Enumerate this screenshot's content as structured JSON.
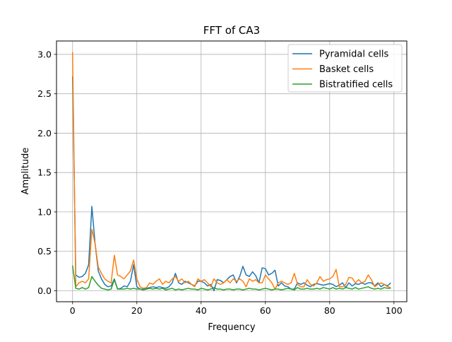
{
  "chart_data": {
    "type": "line",
    "title": "FFT of CA3",
    "xlabel": "Frequency",
    "ylabel": "Amplitude",
    "xlim": [
      -5,
      104
    ],
    "ylim": [
      -0.14,
      3.17
    ],
    "xticks": [
      0,
      20,
      40,
      60,
      80,
      100
    ],
    "yticks": [
      0.0,
      0.5,
      1.0,
      1.5,
      2.0,
      2.5,
      3.0
    ],
    "xtick_labels": [
      "0",
      "20",
      "40",
      "60",
      "80",
      "100"
    ],
    "ytick_labels": [
      "0.0",
      "0.5",
      "1.0",
      "1.5",
      "2.0",
      "2.5",
      "3.0"
    ],
    "grid": true,
    "legend_position": "top-right",
    "x": [
      0,
      1,
      2,
      3,
      4,
      5,
      6,
      7,
      8,
      9,
      10,
      11,
      12,
      13,
      14,
      15,
      16,
      17,
      18,
      19,
      20,
      21,
      22,
      23,
      24,
      25,
      26,
      27,
      28,
      29,
      30,
      31,
      32,
      33,
      34,
      35,
      36,
      37,
      38,
      39,
      40,
      41,
      42,
      43,
      44,
      45,
      46,
      47,
      48,
      49,
      50,
      51,
      52,
      53,
      54,
      55,
      56,
      57,
      58,
      59,
      60,
      61,
      62,
      63,
      64,
      65,
      66,
      67,
      68,
      69,
      70,
      71,
      72,
      73,
      74,
      75,
      76,
      77,
      78,
      79,
      80,
      81,
      82,
      83,
      84,
      85,
      86,
      87,
      88,
      89,
      90,
      91,
      92,
      93,
      94,
      95,
      96,
      97,
      98,
      99
    ],
    "series": [
      {
        "name": "Pyramidal cells",
        "color": "#1f77b4",
        "values": [
          2.72,
          0.2,
          0.17,
          0.18,
          0.22,
          0.33,
          1.07,
          0.6,
          0.25,
          0.15,
          0.08,
          0.05,
          0.06,
          0.15,
          0.02,
          0.03,
          0.06,
          0.05,
          0.12,
          0.33,
          0.05,
          0.02,
          0.02,
          0.03,
          0.04,
          0.05,
          0.04,
          0.05,
          0.04,
          0.03,
          0.05,
          0.1,
          0.22,
          0.1,
          0.08,
          0.12,
          0.1,
          0.08,
          0.06,
          0.12,
          0.12,
          0.1,
          0.06,
          0.08,
          0.0,
          0.14,
          0.13,
          0.1,
          0.14,
          0.18,
          0.2,
          0.1,
          0.18,
          0.31,
          0.2,
          0.18,
          0.24,
          0.19,
          0.1,
          0.29,
          0.28,
          0.2,
          0.22,
          0.26,
          0.06,
          0.1,
          0.06,
          0.05,
          0.02,
          0.02,
          0.1,
          0.08,
          0.1,
          0.07,
          0.05,
          0.08,
          0.09,
          0.08,
          0.07,
          0.08,
          0.09,
          0.08,
          0.05,
          0.07,
          0.1,
          0.04,
          0.1,
          0.06,
          0.09,
          0.08,
          0.1,
          0.08,
          0.1,
          0.1,
          0.06,
          0.1,
          0.05,
          0.08,
          0.06,
          0.1
        ]
      },
      {
        "name": "Basket cells",
        "color": "#ff7f0e",
        "values": [
          3.03,
          0.05,
          0.1,
          0.12,
          0.1,
          0.15,
          0.78,
          0.6,
          0.3,
          0.22,
          0.15,
          0.12,
          0.1,
          0.45,
          0.2,
          0.18,
          0.15,
          0.2,
          0.25,
          0.39,
          0.15,
          0.05,
          0.03,
          0.04,
          0.1,
          0.08,
          0.12,
          0.15,
          0.08,
          0.12,
          0.1,
          0.15,
          0.18,
          0.12,
          0.15,
          0.1,
          0.12,
          0.08,
          0.05,
          0.15,
          0.12,
          0.14,
          0.1,
          0.05,
          0.15,
          0.1,
          0.08,
          0.1,
          0.14,
          0.1,
          0.15,
          0.12,
          0.15,
          0.12,
          0.05,
          0.15,
          0.12,
          0.14,
          0.1,
          0.1,
          0.2,
          0.15,
          0.1,
          0.02,
          0.1,
          0.12,
          0.1,
          0.08,
          0.1,
          0.22,
          0.08,
          0.05,
          0.05,
          0.14,
          0.08,
          0.06,
          0.1,
          0.18,
          0.12,
          0.14,
          0.15,
          0.18,
          0.27,
          0.05,
          0.05,
          0.08,
          0.17,
          0.16,
          0.1,
          0.14,
          0.1,
          0.12,
          0.2,
          0.14,
          0.05,
          0.08,
          0.1,
          0.08,
          0.05,
          0.04
        ]
      },
      {
        "name": "Bistratified cells",
        "color": "#2ca02c",
        "values": [
          0.32,
          0.03,
          0.02,
          0.04,
          0.02,
          0.04,
          0.18,
          0.12,
          0.07,
          0.03,
          0.02,
          0.01,
          0.02,
          0.14,
          0.02,
          0.02,
          0.02,
          0.03,
          0.02,
          0.03,
          0.02,
          0.02,
          0.01,
          0.02,
          0.03,
          0.02,
          0.03,
          0.02,
          0.03,
          0.01,
          0.02,
          0.03,
          0.01,
          0.02,
          0.01,
          0.02,
          0.03,
          0.02,
          0.02,
          0.01,
          0.03,
          0.02,
          0.01,
          0.02,
          0.04,
          0.02,
          0.02,
          0.01,
          0.02,
          0.02,
          0.01,
          0.02,
          0.02,
          0.01,
          0.02,
          0.03,
          0.02,
          0.02,
          0.01,
          0.02,
          0.03,
          0.02,
          0.01,
          0.02,
          0.02,
          0.01,
          0.02,
          0.03,
          0.02,
          0.01,
          0.04,
          0.02,
          0.02,
          0.03,
          0.02,
          0.02,
          0.03,
          0.02,
          0.04,
          0.03,
          0.02,
          0.04,
          0.02,
          0.03,
          0.02,
          0.04,
          0.03,
          0.02,
          0.04,
          0.02,
          0.03,
          0.04,
          0.05,
          0.03,
          0.02,
          0.03,
          0.02,
          0.04,
          0.03,
          0.03
        ]
      }
    ]
  }
}
